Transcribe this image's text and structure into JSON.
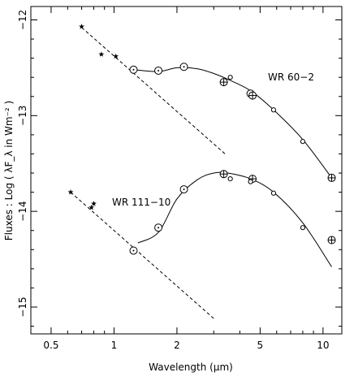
{
  "chart_data": {
    "type": "scatter",
    "title": "",
    "xlabel": "Wavelength (μm)",
    "ylabel": "Fluxes : Log ( λF_λ in Wm⁻² )",
    "x_scale": "log",
    "xlim": [
      0.4,
      12.3
    ],
    "ylim": [
      -15.28,
      -11.86
    ],
    "x_ticks": [
      0.5,
      1,
      2,
      5,
      10
    ],
    "x_tick_labels": [
      "0.5",
      "1",
      "2",
      "5",
      "10"
    ],
    "y_ticks": [
      -12,
      -13,
      -14,
      -15
    ],
    "y_tick_labels": [
      "−12",
      "−13",
      "−14",
      "−15"
    ],
    "grid": false,
    "annotations": [
      "WR 60−2",
      "WR 111−10"
    ],
    "series": [
      {
        "marker": "star",
        "points": [
          {
            "x": 0.7,
            "y": -12.07
          },
          {
            "x": 0.87,
            "y": -12.36
          },
          {
            "x": 1.02,
            "y": -12.38
          },
          {
            "x": 0.62,
            "y": -13.8
          },
          {
            "x": 0.78,
            "y": -13.96
          },
          {
            "x": 0.8,
            "y": -13.92
          }
        ]
      },
      {
        "marker": "circle-dot",
        "points": [
          {
            "x": 1.24,
            "y": -12.52
          },
          {
            "x": 1.63,
            "y": -12.53
          },
          {
            "x": 2.16,
            "y": -12.49
          },
          {
            "x": 4.5,
            "y": -12.77
          },
          {
            "x": 1.24,
            "y": -14.41
          },
          {
            "x": 1.63,
            "y": -14.17
          },
          {
            "x": 2.16,
            "y": -13.77
          }
        ]
      },
      {
        "marker": "circle-plus",
        "points": [
          {
            "x": 3.35,
            "y": -12.65
          },
          {
            "x": 4.6,
            "y": -12.79
          },
          {
            "x": 11.0,
            "y": -13.65
          },
          {
            "x": 3.35,
            "y": -13.61
          },
          {
            "x": 4.6,
            "y": -13.66
          },
          {
            "x": 11.0,
            "y": -14.3
          }
        ]
      },
      {
        "marker": "small-circle",
        "points": [
          {
            "x": 3.6,
            "y": -12.6
          },
          {
            "x": 5.8,
            "y": -12.94
          },
          {
            "x": 8.0,
            "y": -13.27
          },
          {
            "x": 3.6,
            "y": -13.66
          },
          {
            "x": 4.5,
            "y": -13.69
          },
          {
            "x": 5.8,
            "y": -13.81
          },
          {
            "x": 8.0,
            "y": -14.17
          }
        ]
      }
    ],
    "curves": [
      {
        "style": "solid",
        "points": [
          [
            1.24,
            -12.52
          ],
          [
            1.63,
            -12.54
          ],
          [
            2.0,
            -12.5
          ],
          [
            2.5,
            -12.51
          ],
          [
            3.0,
            -12.56
          ],
          [
            3.5,
            -12.62
          ],
          [
            4.5,
            -12.74
          ],
          [
            5.8,
            -12.94
          ],
          [
            8.0,
            -13.25
          ],
          [
            11.0,
            -13.65
          ]
        ]
      },
      {
        "style": "solid",
        "points": [
          [
            1.3,
            -14.33
          ],
          [
            1.63,
            -14.22
          ],
          [
            2.0,
            -13.87
          ],
          [
            2.5,
            -13.67
          ],
          [
            3.0,
            -13.6
          ],
          [
            3.5,
            -13.6
          ],
          [
            4.5,
            -13.66
          ],
          [
            5.8,
            -13.8
          ],
          [
            8.0,
            -14.12
          ],
          [
            11.0,
            -14.58
          ]
        ]
      },
      {
        "style": "dashed",
        "points": [
          [
            0.7,
            -12.08
          ],
          [
            3.4,
            -13.4
          ]
        ]
      },
      {
        "style": "dashed",
        "points": [
          [
            0.62,
            -13.8
          ],
          [
            3.0,
            -15.12
          ]
        ]
      }
    ]
  }
}
